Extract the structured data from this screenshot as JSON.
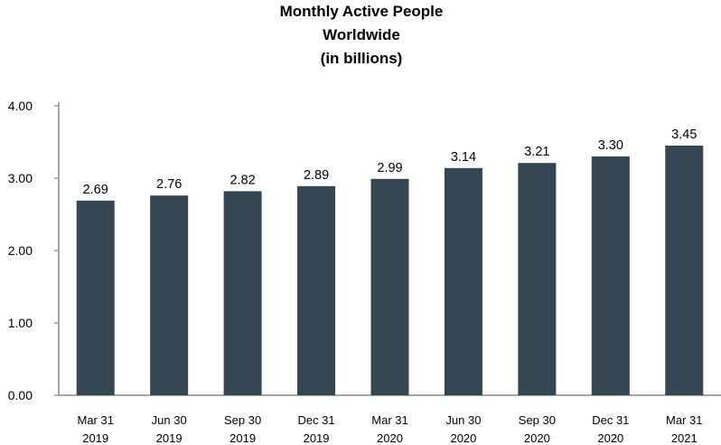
{
  "chart_data": {
    "type": "bar",
    "title": "Monthly Active People",
    "subtitle": "Worldwide",
    "subtitle2": "(in billions)",
    "categories": [
      [
        "Mar 31",
        "2019"
      ],
      [
        "Jun 30",
        "2019"
      ],
      [
        "Sep 30",
        "2019"
      ],
      [
        "Dec 31",
        "2019"
      ],
      [
        "Mar 31",
        "2020"
      ],
      [
        "Jun 30",
        "2020"
      ],
      [
        "Sep 30",
        "2020"
      ],
      [
        "Dec 31",
        "2020"
      ],
      [
        "Mar 31",
        "2021"
      ]
    ],
    "values": [
      2.69,
      2.76,
      2.82,
      2.89,
      2.99,
      3.14,
      3.21,
      3.3,
      3.45
    ],
    "data_labels": [
      "2.69",
      "2.76",
      "2.82",
      "2.89",
      "2.99",
      "3.14",
      "3.21",
      "3.30",
      "3.45"
    ],
    "y_ticks": [
      0,
      1,
      2,
      3,
      4
    ],
    "y_tick_labels": [
      "0.00",
      "1.00",
      "2.00",
      "3.00",
      "4.00"
    ],
    "ylim": [
      0,
      4
    ],
    "xlabel": "",
    "ylabel": "",
    "grid": false,
    "legend": "none",
    "bar_color": "#344651",
    "axis_color": "#898989"
  }
}
